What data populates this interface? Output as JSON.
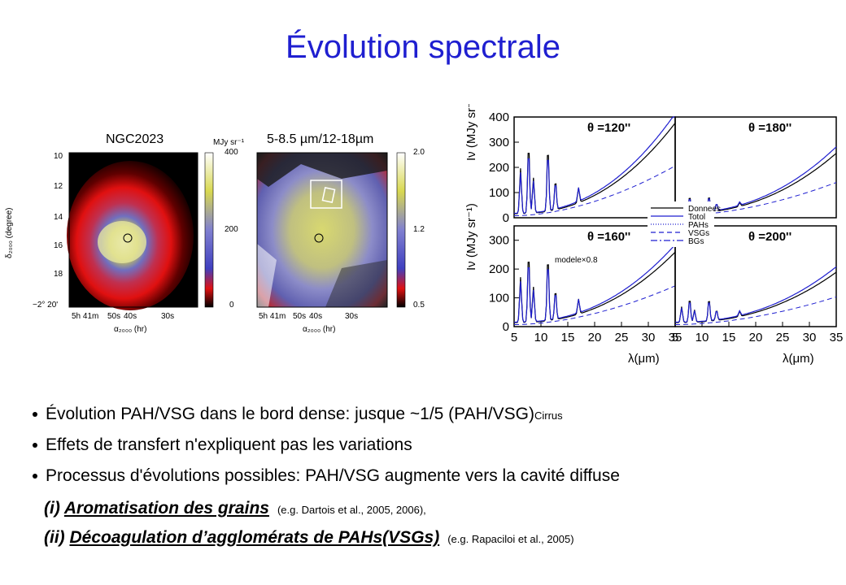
{
  "title": "Évolution spectrale",
  "maps": {
    "left_title": "NGC2023",
    "right_title": "5-8.5 µm/12-18µm",
    "left_colorbar_label": "MJy sr⁻¹",
    "left_colorbar_ticks": [
      "400",
      "200",
      "0"
    ],
    "right_colorbar_ticks": [
      "2.0",
      "1.2",
      "0.5"
    ],
    "y_axis_label": "δ₂₀₀₀ (degree)",
    "y_ticks": [
      "10",
      "12",
      "14",
      "16",
      "18",
      "−2° 20'"
    ],
    "x_ticks": [
      "5h 41m",
      "50s",
      "40s",
      "30s"
    ],
    "x_axis_label": "α₂₀₀₀ (hr)"
  },
  "chart_data": {
    "type": "line",
    "xlabel": "λ(μm)",
    "ylabel": "Iν (MJy sr⁻¹)",
    "xlim": [
      5,
      35
    ],
    "x_ticks": [
      "5",
      "10",
      "15",
      "20",
      "25",
      "30",
      "35"
    ],
    "panels": [
      {
        "label": "θ =120''",
        "ylim": [
          0,
          400
        ],
        "y_ticks": [
          "0",
          "100",
          "200",
          "300",
          "400"
        ]
      },
      {
        "label": "θ =180''",
        "ylim": [
          0,
          400
        ],
        "y_ticks": []
      },
      {
        "label": "θ =160''",
        "ylim": [
          0,
          350
        ],
        "y_ticks": [
          "0",
          "100",
          "200",
          "300"
        ],
        "annotation": "modele×0.8"
      },
      {
        "label": "θ =200''",
        "ylim": [
          0,
          350
        ],
        "y_ticks": []
      }
    ],
    "legend": [
      "Donnees",
      "Totol",
      "PAHs",
      "VSGs",
      "BGs"
    ]
  },
  "bullets": [
    {
      "text": "Évolution PAH/VSG dans le bord dense: jusque ~1/5 (PAH/VSG)",
      "sub": "Cirrus"
    },
    {
      "text": "Effets de transfert n'expliquent pas les variations",
      "sub": ""
    },
    {
      "text": "Processus d'évolutions possibles: PAH/VSG augmente vers la cavité diffuse",
      "sub": ""
    }
  ],
  "processes": [
    {
      "prefix": "(i) ",
      "name": "Aromatisation des grains",
      "ref": "(e.g. Dartois et al., 2005, 2006),"
    },
    {
      "prefix": "(ii) ",
      "name": "Décoagulation d’agglomérats de PAHs(VSGs)",
      "ref": "(e.g. Rapaciloi et al., 2005)"
    }
  ]
}
